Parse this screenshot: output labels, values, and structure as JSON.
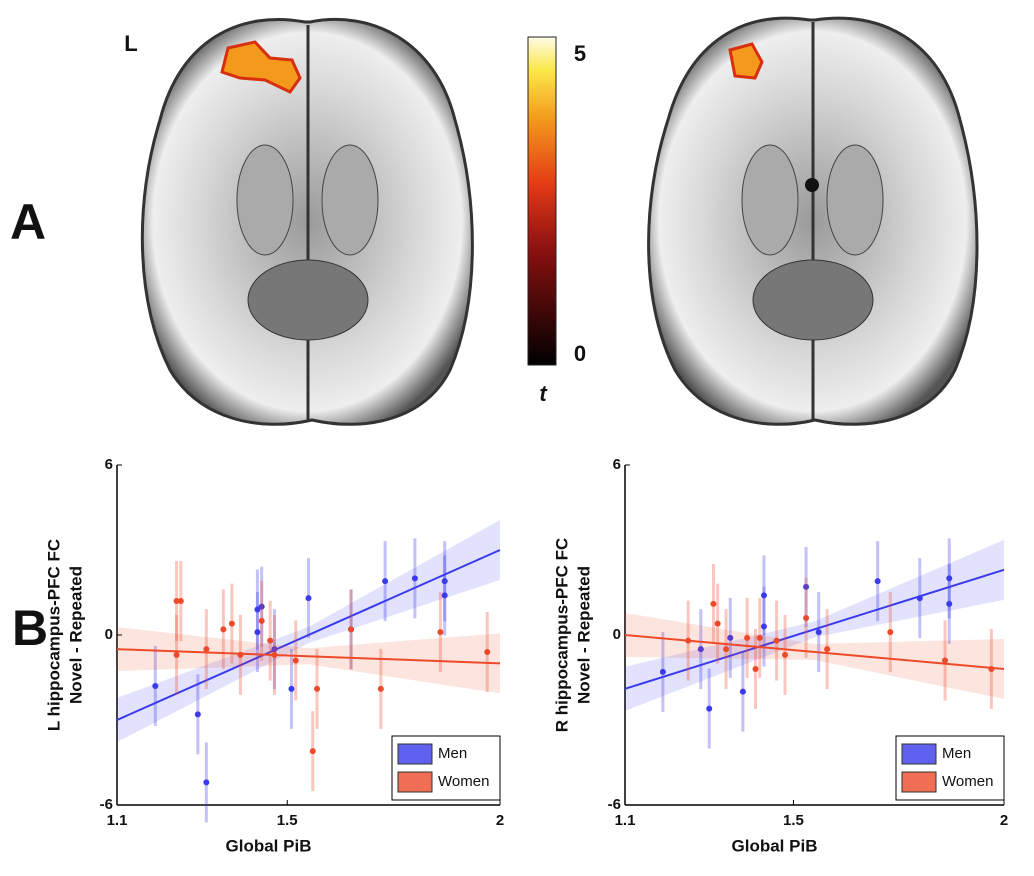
{
  "panel_labels": [
    "A",
    "B"
  ],
  "hemisphere_label": "L",
  "colorbar": {
    "label": "t",
    "lim": [
      0,
      5
    ],
    "ticks": [
      0,
      5
    ]
  },
  "chart_data": [
    {
      "type": "scatter",
      "ylabel": [
        "L hippocampus-PFC FC",
        "Novel - Repeated"
      ],
      "xlabel": "Global PiB",
      "xlim": [
        1.1,
        2
      ],
      "xticks": [
        1.1,
        1.5,
        2
      ],
      "ylim": [
        -6,
        6
      ],
      "yticks": [
        -6,
        0,
        6
      ],
      "legend": "lower right",
      "series": [
        {
          "name": "Men",
          "color": "#3a3aee",
          "x": [
            1.19,
            1.29,
            1.31,
            1.43,
            1.43,
            1.44,
            1.47,
            1.51,
            1.55,
            1.65,
            1.73,
            1.8,
            1.87,
            1.87
          ],
          "values": [
            -1.8,
            -2.8,
            -5.2,
            0.1,
            0.9,
            1.0,
            -0.5,
            -1.9,
            1.3,
            0.2,
            1.9,
            2.0,
            1.9,
            1.4
          ],
          "fit_x": [
            1.1,
            2
          ],
          "fit": [
            -3,
            3
          ]
        },
        {
          "name": "Women",
          "color": "#ee4a2a",
          "x": [
            1.24,
            1.25,
            1.24,
            1.31,
            1.35,
            1.37,
            1.39,
            1.44,
            1.46,
            1.47,
            1.52,
            1.56,
            1.57,
            1.65,
            1.72,
            1.86,
            1.97
          ],
          "values": [
            1.2,
            1.2,
            -0.7,
            -0.5,
            0.2,
            0.4,
            -0.7,
            0.5,
            -0.2,
            -0.7,
            -0.9,
            -4.1,
            -1.9,
            0.2,
            -1.9,
            0.1,
            -0.6
          ],
          "fit_x": [
            1.1,
            2
          ],
          "fit": [
            -0.5,
            -1
          ]
        }
      ]
    },
    {
      "type": "scatter",
      "ylabel": [
        "R hippocampus-PFC FC",
        "Novel - Repeated"
      ],
      "xlabel": "Global PiB",
      "xlim": [
        1.1,
        2
      ],
      "xticks": [
        1.1,
        1.5,
        2
      ],
      "ylim": [
        -6,
        6
      ],
      "yticks": [
        -6,
        0,
        6
      ],
      "legend": "lower right",
      "series": [
        {
          "name": "Men",
          "color": "#3a3aee",
          "x": [
            1.19,
            1.28,
            1.3,
            1.35,
            1.38,
            1.43,
            1.43,
            1.53,
            1.56,
            1.7,
            1.8,
            1.87,
            1.87
          ],
          "values": [
            -1.3,
            -0.5,
            -2.6,
            -0.1,
            -2.0,
            1.4,
            0.3,
            1.7,
            0.1,
            1.9,
            1.3,
            2.0,
            1.1
          ],
          "fit_x": [
            1.1,
            2
          ],
          "fit": [
            -1.9,
            2.3
          ]
        },
        {
          "name": "Women",
          "color": "#ee4a2a",
          "x": [
            1.25,
            1.31,
            1.32,
            1.34,
            1.39,
            1.41,
            1.42,
            1.46,
            1.48,
            1.53,
            1.58,
            1.73,
            1.86,
            1.97
          ],
          "values": [
            -0.2,
            1.1,
            0.4,
            -0.5,
            -0.1,
            -1.2,
            -0.1,
            -0.2,
            -0.7,
            0.6,
            -0.5,
            0.1,
            -0.9,
            -1.2
          ],
          "fit_x": [
            1.1,
            2
          ],
          "fit": [
            0,
            -1.2
          ]
        }
      ]
    }
  ]
}
